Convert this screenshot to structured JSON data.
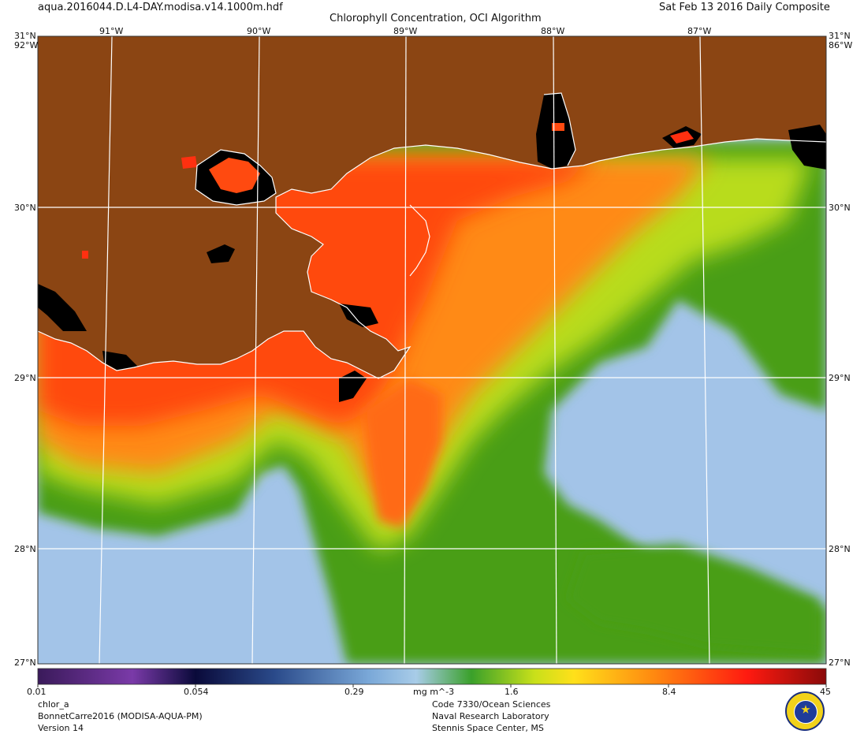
{
  "header": {
    "filename": "aqua.2016044.D.L4-DAY.modisa.v14.1000m.hdf",
    "title": "Chlorophyll Concentration, OCI Algorithm",
    "date": "Sat Feb 13 2016 Daily Composite"
  },
  "map": {
    "top_lon_labels": [
      "91°W",
      "90°W",
      "89°W",
      "88°W",
      "87°W"
    ],
    "corner_labels": {
      "top_left": "31°N",
      "top_right": "31°N",
      "left_top_lon": "92°W",
      "right_top_lon": "86°W",
      "bottom_left": "27°N",
      "bottom_right": "27°N"
    },
    "lat_labels": [
      "30°N",
      "29°N",
      "28°N"
    ],
    "colors": {
      "land": "#8b4513",
      "no_data": "#000000",
      "grid": "#ffffff",
      "low_chl": "#a3c4e8",
      "mid_chl": "#4a9e16",
      "high_chl": "#ff3a10"
    }
  },
  "colorbar": {
    "tick_labels": [
      "0.01",
      "0.054",
      "0.29",
      "1.6",
      "8.4",
      "45"
    ],
    "units": "mg m^-3",
    "colors": [
      "#3a1a5a",
      "#7a3aa8",
      "#0a0a3a",
      "#2a4a8a",
      "#7aa8d8",
      "#a8cce8",
      "#3aa02a",
      "#c8e01a",
      "#ffe01a",
      "#ff8a10",
      "#ff1a10",
      "#8a0a0a"
    ]
  },
  "footer": {
    "left": [
      "chlor_a",
      "BonnetCarre2016 (MODISA-AQUA-PM)",
      "Version 14"
    ],
    "right": [
      "Code 7330/Ocean Sciences",
      "Naval Research Laboratory",
      "Stennis Space Center, MS"
    ]
  },
  "logo": {
    "name": "nrl-seal-icon"
  }
}
